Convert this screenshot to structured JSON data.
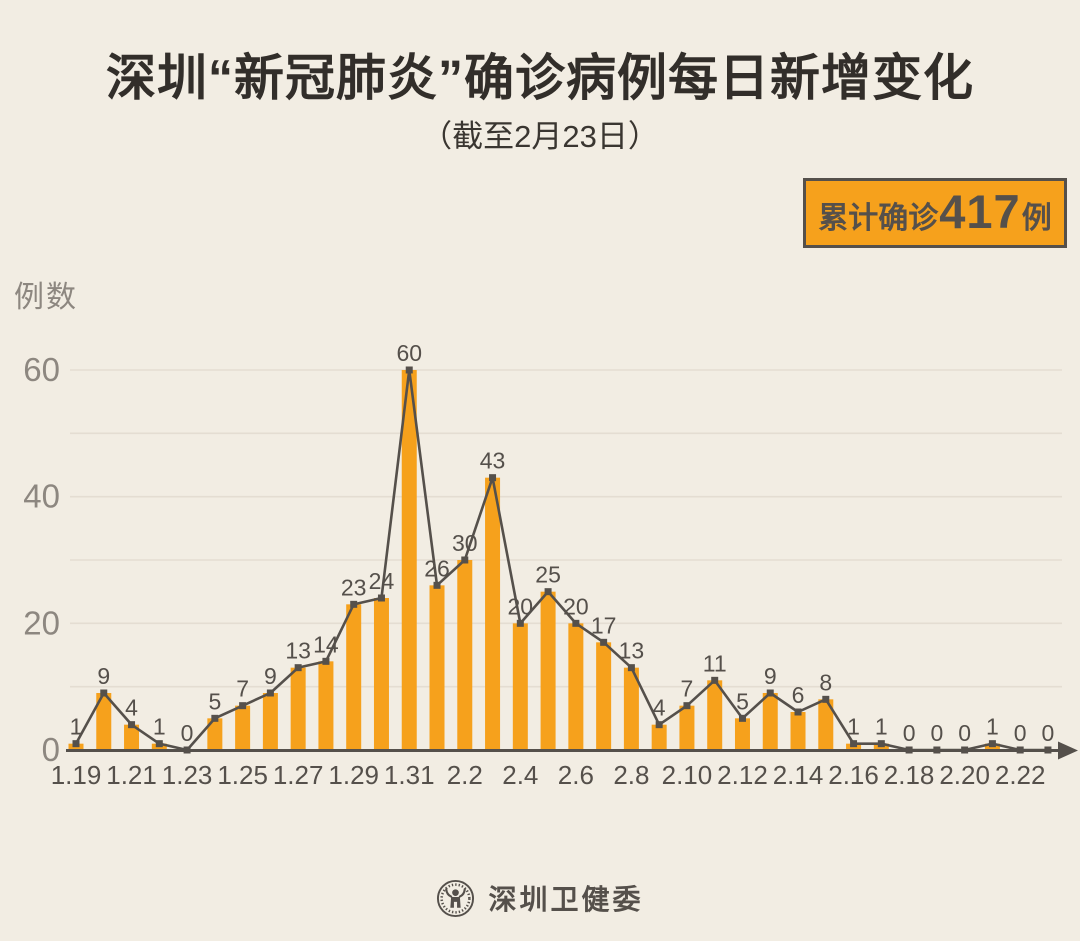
{
  "header": {
    "title": "深圳“新冠肺炎”确诊病例每日新增变化",
    "subtitle": "（截至2月23日）"
  },
  "badge": {
    "prefix": "累计确诊",
    "number": "417",
    "suffix": "例"
  },
  "chart_data": {
    "type": "bar",
    "line_overlay": true,
    "title": "深圳“新冠肺炎”确诊病例每日新增变化",
    "subtitle": "（截至2月23日）",
    "ylabel": "例数",
    "categories": [
      "1.19",
      "1.20",
      "1.21",
      "1.22",
      "1.23",
      "1.24",
      "1.25",
      "1.26",
      "1.27",
      "1.28",
      "1.29",
      "1.30",
      "1.31",
      "2.1",
      "2.2",
      "2.3",
      "2.4",
      "2.5",
      "2.6",
      "2.7",
      "2.8",
      "2.9",
      "2.10",
      "2.11",
      "2.12",
      "2.13",
      "2.14",
      "2.15",
      "2.16",
      "2.17",
      "2.18",
      "2.19",
      "2.20",
      "2.21",
      "2.22",
      "2.23"
    ],
    "values": [
      1,
      9,
      4,
      1,
      0,
      5,
      7,
      9,
      13,
      14,
      23,
      24,
      60,
      26,
      30,
      43,
      20,
      25,
      20,
      17,
      13,
      4,
      7,
      11,
      5,
      9,
      6,
      8,
      1,
      1,
      0,
      0,
      0,
      1,
      0,
      0
    ],
    "x_tick_labels": [
      "1.19",
      "1.21",
      "1.23",
      "1.25",
      "1.27",
      "1.29",
      "1.31",
      "2.2",
      "2.4",
      "2.6",
      "2.8",
      "2.10",
      "2.12",
      "2.14",
      "2.16",
      "2.18",
      "2.20",
      "2.22"
    ],
    "x_tick_every": 2,
    "yticks": [
      0,
      20,
      40,
      60
    ],
    "ylim": [
      0,
      60
    ],
    "grid_step": 10,
    "grid_on": true,
    "total_annotation": "累计确诊417例",
    "colors": {
      "background": "#F2EDE3",
      "bar": "#F6A11C",
      "line": "#55504B",
      "marker": "#55504B",
      "grid": "#E4DDD2",
      "axis": "#55504B",
      "y_tick_text": "#8D8780",
      "x_tick_text": "#55504B",
      "value_label_text": "#55504B",
      "badge_bg": "#F6A11C",
      "badge_border": "#55504B"
    }
  },
  "footer": {
    "org": "深圳卫健委",
    "logo": "shenzhen-health-commission-seal"
  }
}
